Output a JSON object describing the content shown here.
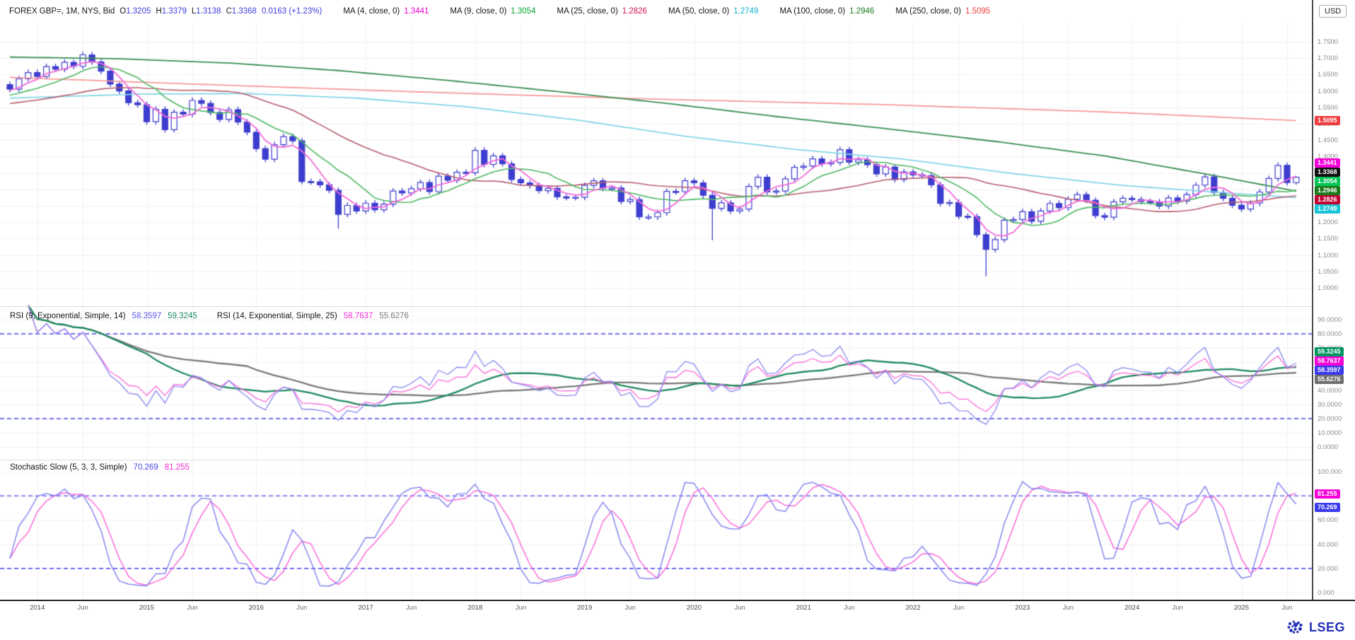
{
  "header": {
    "title": "FOREX GBP=, 1M, NYS, Bid",
    "ohlc": {
      "o_label": "O",
      "o": "1.3205",
      "h_label": "H",
      "h": "1.3379",
      "l_label": "L",
      "l": "1.3138",
      "c_label": "C",
      "c": "1.3368",
      "change": "0.0163 (+1.23%)"
    },
    "currency_badge": "USD",
    "ma_legend": [
      {
        "label": "MA (4, close, 0)",
        "value": "1.3441",
        "text_color": "#f500d6"
      },
      {
        "label": "MA (9, close, 0)",
        "value": "1.3054",
        "text_color": "#00a832"
      },
      {
        "label": "MA (25, close, 0)",
        "value": "1.2826",
        "text_color": "#d2154f"
      },
      {
        "label": "MA (50, close, 0)",
        "value": "1.2749",
        "text_color": "#11b4cc"
      },
      {
        "label": "MA (100, close, 0)",
        "value": "1.2946",
        "text_color": "#1a7a1a"
      },
      {
        "label": "MA (250, close, 0)",
        "value": "1.5095",
        "text_color": "#f03e3e"
      }
    ]
  },
  "rsi_header": {
    "label_fast": "RSI (9, Exponential, Simple, 14)",
    "value_fast": "58.3597",
    "value_fast_ma": "59.3245",
    "label_slow": "RSI (14, Exponential, Simple, 25)",
    "value_slow": "58.7637",
    "value_slow_ma": "55.6276"
  },
  "stoch_header": {
    "label": "Stochastic Slow (5, 3, 3, Simple)",
    "k_value": "70.269",
    "d_value": "81.255"
  },
  "footer": {
    "logo_text": "LSEG"
  },
  "colors": {
    "ohlc_value": "#3c3cdb",
    "candle": "#3d3dcf",
    "rsi_fast": "#5b5be8",
    "rsi_fast_ma": "#1f8a5f",
    "rsi_slow": "#f52bd2",
    "rsi_slow_ma": "#787878",
    "stoch_k": "#4646e0",
    "stoch_d": "#f52bd2",
    "grid": "#f1f1f1",
    "level_dash": "#4646f0",
    "axis_text": "#8c8c8c",
    "logo_blue": "#2430b8"
  },
  "chart_data": {
    "type": "candlestick",
    "symbol": "FOREX GBP=",
    "interval": "1M",
    "venue": "NYS",
    "side": "Bid",
    "start_month": "2013-10",
    "prev_close": 1.619,
    "closes": [
      1.605,
      1.637,
      1.656,
      1.644,
      1.674,
      1.666,
      1.687,
      1.675,
      1.71,
      1.688,
      1.66,
      1.621,
      1.6,
      1.564,
      1.558,
      1.506,
      1.544,
      1.482,
      1.535,
      1.529,
      1.571,
      1.562,
      1.534,
      1.513,
      1.543,
      1.505,
      1.474,
      1.424,
      1.392,
      1.436,
      1.461,
      1.448,
      1.324,
      1.323,
      1.314,
      1.297,
      1.224,
      1.251,
      1.234,
      1.258,
      1.238,
      1.255,
      1.295,
      1.289,
      1.302,
      1.321,
      1.293,
      1.34,
      1.328,
      1.352,
      1.351,
      1.419,
      1.376,
      1.402,
      1.378,
      1.33,
      1.32,
      1.312,
      1.296,
      1.303,
      1.277,
      1.275,
      1.276,
      1.312,
      1.326,
      1.303,
      1.304,
      1.263,
      1.269,
      1.216,
      1.216,
      1.229,
      1.294,
      1.293,
      1.326,
      1.32,
      1.282,
      1.242,
      1.259,
      1.234,
      1.24,
      1.309,
      1.337,
      1.292,
      1.295,
      1.332,
      1.367,
      1.371,
      1.393,
      1.378,
      1.382,
      1.421,
      1.383,
      1.39,
      1.375,
      1.347,
      1.368,
      1.33,
      1.353,
      1.344,
      1.342,
      1.314,
      1.257,
      1.26,
      1.218,
      1.217,
      1.162,
      1.117,
      1.147,
      1.206,
      1.208,
      1.232,
      1.203,
      1.234,
      1.257,
      1.244,
      1.27,
      1.284,
      1.267,
      1.22,
      1.215,
      1.262,
      1.273,
      1.269,
      1.263,
      1.262,
      1.249,
      1.274,
      1.264,
      1.284,
      1.313,
      1.338,
      1.29,
      1.273,
      1.252,
      1.24,
      1.258,
      1.292,
      1.333,
      1.373,
      1.3205,
      1.3368
    ],
    "default_wick": 0.009,
    "wick_overrides": {
      "36": {
        "low": 1.18
      },
      "77": {
        "low": 1.145
      },
      "107": {
        "low": 1.035
      },
      "141": {
        "high": 1.3379,
        "low": 1.3138
      }
    },
    "last_bar": {
      "open": 1.3205,
      "high": 1.3379,
      "low": 1.3138,
      "close": 1.3368,
      "change": 0.0163,
      "change_pct": 1.23
    },
    "moving_averages": {
      "ma4": {
        "period": 4,
        "color": "#f46ad9",
        "last": 1.3441
      },
      "ma9": {
        "period": 9,
        "color": "#4db863",
        "last": 1.3054
      },
      "ma25": {
        "period": 25,
        "color": "#b75d6e",
        "last": 1.2826
      },
      "ma50": {
        "period": 50,
        "color": "#85d6e6",
        "last": 1.2749,
        "points": [
          [
            0,
            1.578
          ],
          [
            14,
            1.59
          ],
          [
            26,
            1.592
          ],
          [
            38,
            1.578
          ],
          [
            50,
            1.552
          ],
          [
            62,
            1.512
          ],
          [
            74,
            1.462
          ],
          [
            86,
            1.422
          ],
          [
            98,
            1.392
          ],
          [
            110,
            1.348
          ],
          [
            122,
            1.312
          ],
          [
            134,
            1.288
          ],
          [
            141,
            1.2749
          ]
        ]
      },
      "ma100": {
        "period": 100,
        "color": "#3a8f52",
        "last": 1.2946,
        "points": [
          [
            0,
            1.703
          ],
          [
            12,
            1.698
          ],
          [
            24,
            1.685
          ],
          [
            36,
            1.662
          ],
          [
            48,
            1.632
          ],
          [
            60,
            1.598
          ],
          [
            72,
            1.562
          ],
          [
            84,
            1.522
          ],
          [
            96,
            1.485
          ],
          [
            108,
            1.446
          ],
          [
            120,
            1.402
          ],
          [
            132,
            1.342
          ],
          [
            141,
            1.2946
          ]
        ]
      },
      "ma250": {
        "period": 250,
        "color": "#f79a9a",
        "last": 1.5095,
        "points": [
          [
            0,
            1.641
          ],
          [
            24,
            1.617
          ],
          [
            48,
            1.594
          ],
          [
            72,
            1.574
          ],
          [
            96,
            1.558
          ],
          [
            120,
            1.536
          ],
          [
            141,
            1.5095
          ]
        ]
      }
    },
    "rsi": {
      "fast": {
        "period": 9,
        "value": 58.3597,
        "sma_period": 14,
        "sma_value": 59.3245
      },
      "slow": {
        "period": 14,
        "value": 58.7637,
        "sma_period": 25,
        "sma_value": 55.6276
      },
      "levels": [
        80,
        20
      ]
    },
    "stochastic": {
      "params": [
        5,
        3,
        3,
        "Simple"
      ],
      "k": 70.269,
      "d": 81.255,
      "levels": [
        80,
        20
      ]
    },
    "price_axis": {
      "min": 0.944,
      "max": 1.808,
      "ticks": [
        {
          "v": 1.75,
          "t": "1.7500"
        },
        {
          "v": 1.7,
          "t": "1.7000"
        },
        {
          "v": 1.65,
          "t": "1.6500"
        },
        {
          "v": 1.6,
          "t": "1.6000"
        },
        {
          "v": 1.55,
          "t": "1.5500"
        },
        {
          "v": 1.5,
          "t": "1.5000"
        },
        {
          "v": 1.45,
          "t": "1.4500"
        },
        {
          "v": 1.4,
          "t": "1.4000"
        },
        {
          "v": 1.35,
          "t": "1.3500"
        },
        {
          "v": 1.3,
          "t": "1.3000"
        },
        {
          "v": 1.25,
          "t": "1.2500"
        },
        {
          "v": 1.2,
          "t": "1.2000"
        },
        {
          "v": 1.15,
          "t": "1.1500"
        },
        {
          "v": 1.1,
          "t": "1.1000"
        },
        {
          "v": 1.05,
          "t": "1.0500"
        },
        {
          "v": 1.0,
          "t": "1.0000"
        }
      ],
      "badges": [
        {
          "text": "1.5095",
          "value": 1.5095,
          "color": "#f03e3e"
        },
        {
          "text": "1.3441",
          "value": 1.3441,
          "color": "#f500d6"
        },
        {
          "text": "1.3368",
          "value": 1.3368,
          "color": "#111111"
        },
        {
          "text": "1.3054",
          "value": 1.3054,
          "color": "#00c455"
        },
        {
          "text": "1.2946",
          "value": 1.2946,
          "color": "#1a7a1a"
        },
        {
          "text": "1.2826",
          "value": 1.2826,
          "color": "#c00030"
        },
        {
          "text": "1.2749",
          "value": 1.2749,
          "color": "#18c5d8"
        }
      ]
    },
    "rsi_axis": {
      "min": -9,
      "max": 99.5,
      "ticks": [
        {
          "v": 90,
          "t": "90.0000"
        },
        {
          "v": 80,
          "t": "80.0000"
        },
        {
          "v": 70,
          "t": "70.0000"
        },
        {
          "v": 60,
          "t": "60.0000"
        },
        {
          "v": 50,
          "t": "50.0000"
        },
        {
          "v": 40,
          "t": "40.0000"
        },
        {
          "v": 30,
          "t": "30.0000"
        },
        {
          "v": 20,
          "t": "20.0000"
        },
        {
          "v": 10,
          "t": "10.0000"
        },
        {
          "v": 0,
          "t": "0.0000"
        }
      ],
      "badges": [
        {
          "text": "59.3245",
          "value": 59.3245,
          "color": "#00945e"
        },
        {
          "text": "58.7637",
          "value": 58.7637,
          "color": "#f500d6"
        },
        {
          "text": "58.3597",
          "value": 58.3597,
          "color": "#3b3bed"
        },
        {
          "text": "55.6276",
          "value": 55.6276,
          "color": "#6f6f6f"
        }
      ]
    },
    "stoch_axis": {
      "min": -5.85,
      "max": 109.9,
      "ticks": [
        {
          "v": 100,
          "t": "100.000"
        },
        {
          "v": 80,
          "t": "80.000"
        },
        {
          "v": 60,
          "t": "60.000"
        },
        {
          "v": 40,
          "t": "40.000"
        },
        {
          "v": 20,
          "t": "20.000"
        },
        {
          "v": 0,
          "t": "0.000"
        }
      ],
      "badges": [
        {
          "text": "81.255",
          "value": 81.255,
          "color": "#f500d6"
        },
        {
          "text": "70.269",
          "value": 70.269,
          "color": "#3b3bed"
        }
      ]
    },
    "time_axis": {
      "ticks": [
        {
          "label": "2014",
          "index": 3
        },
        {
          "label": "Jun",
          "index": 8,
          "minor": true
        },
        {
          "label": "2015",
          "index": 15
        },
        {
          "label": "Jun",
          "index": 20,
          "minor": true
        },
        {
          "label": "2016",
          "index": 27
        },
        {
          "label": "Jun",
          "index": 32,
          "minor": true
        },
        {
          "label": "2017",
          "index": 39
        },
        {
          "label": "Jun",
          "index": 44,
          "minor": true
        },
        {
          "label": "2018",
          "index": 51
        },
        {
          "label": "Jun",
          "index": 56,
          "minor": true
        },
        {
          "label": "2019",
          "index": 63
        },
        {
          "label": "Jun",
          "index": 68,
          "minor": true
        },
        {
          "label": "2020",
          "index": 75
        },
        {
          "label": "Jun",
          "index": 80,
          "minor": true
        },
        {
          "label": "2021",
          "index": 87
        },
        {
          "label": "Jun",
          "index": 92,
          "minor": true
        },
        {
          "label": "2022",
          "index": 99
        },
        {
          "label": "Jun",
          "index": 104,
          "minor": true
        },
        {
          "label": "2023",
          "index": 111
        },
        {
          "label": "Jun",
          "index": 116,
          "minor": true
        },
        {
          "label": "2024",
          "index": 123
        },
        {
          "label": "Jun",
          "index": 128,
          "minor": true
        },
        {
          "label": "2025",
          "index": 135
        },
        {
          "label": "Jun",
          "index": 140,
          "minor": true
        }
      ]
    }
  }
}
